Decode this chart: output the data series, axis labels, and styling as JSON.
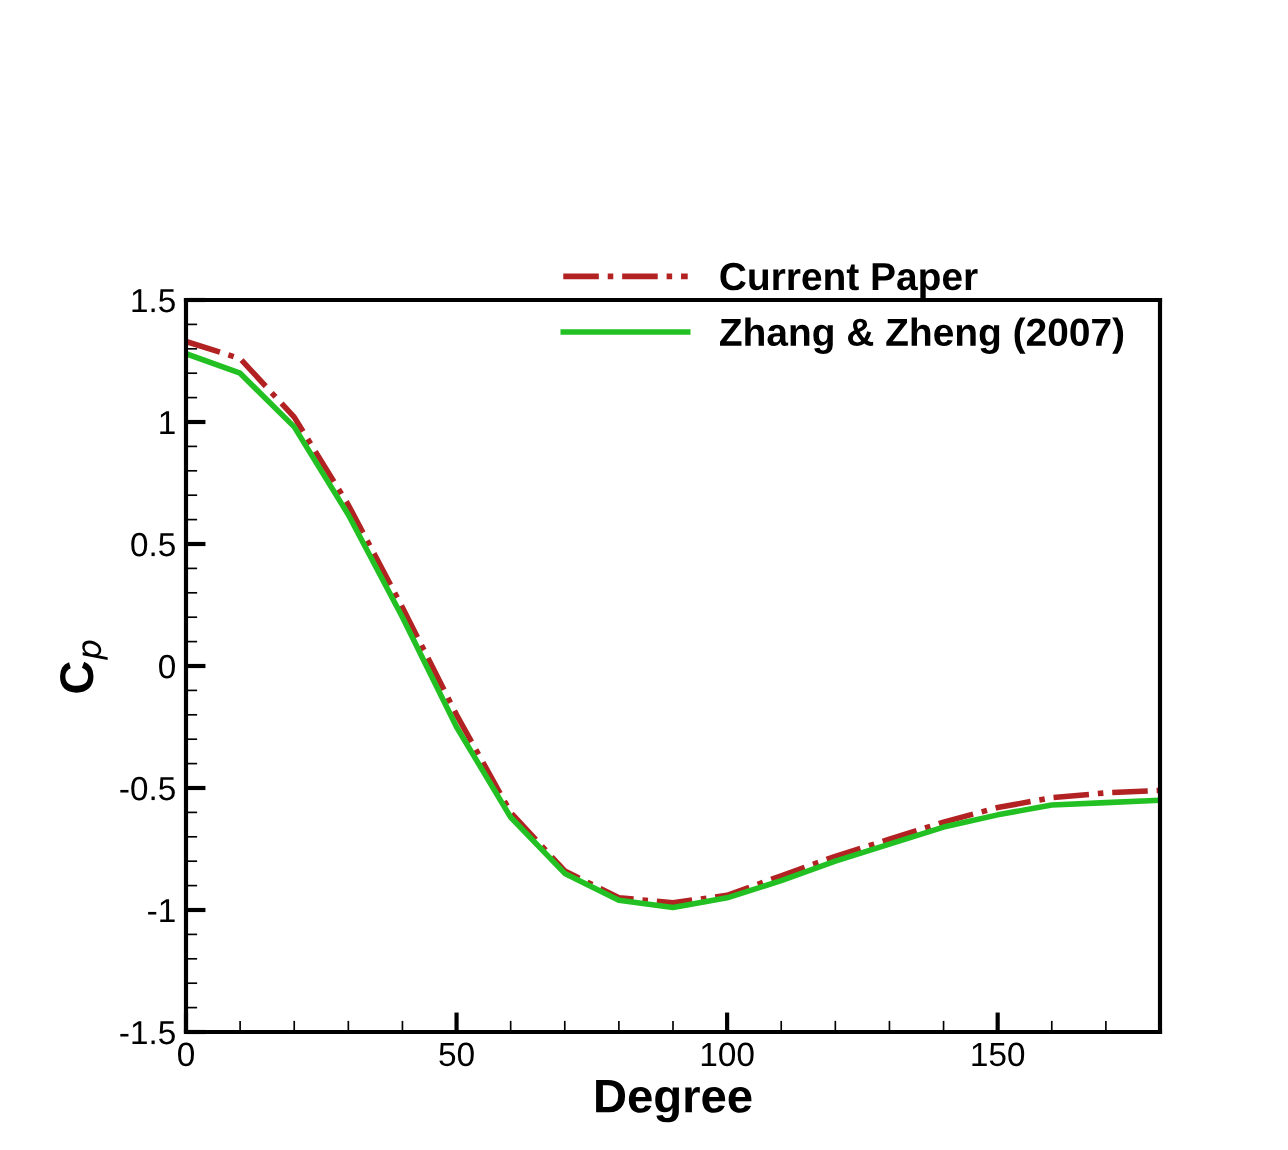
{
  "chart_data": {
    "type": "line",
    "xlabel": "Degree",
    "ylabel": "C$_{p}$",
    "x": [
      0,
      10,
      20,
      30,
      40,
      50,
      60,
      70,
      80,
      90,
      100,
      110,
      120,
      130,
      140,
      150,
      160,
      170,
      180
    ],
    "series": [
      {
        "name": "Current Paper",
        "color": "#b22222",
        "line_style": "dashdot",
        "values": [
          1.33,
          1.26,
          1.02,
          0.66,
          0.24,
          -0.2,
          -0.6,
          -0.84,
          -0.95,
          -0.97,
          -0.94,
          -0.86,
          -0.78,
          -0.71,
          -0.64,
          -0.58,
          -0.54,
          -0.52,
          -0.51
        ]
      },
      {
        "name": "Zhang & Zheng (2007)",
        "color": "#22c022",
        "line_style": "solid",
        "values": [
          1.28,
          1.2,
          0.98,
          0.62,
          0.2,
          -0.25,
          -0.62,
          -0.85,
          -0.96,
          -0.99,
          -0.95,
          -0.88,
          -0.8,
          -0.73,
          -0.66,
          -0.61,
          -0.57,
          -0.56,
          -0.55
        ]
      }
    ],
    "xlim": [
      0,
      180
    ],
    "xticks": [
      0,
      50,
      100,
      150
    ],
    "ylim": [
      -1.5,
      1.5
    ],
    "yticks": [
      -1.5,
      -1,
      -0.5,
      0,
      0.5,
      1,
      1.5
    ],
    "grid": false,
    "legend": "top right",
    "marker": "none"
  }
}
